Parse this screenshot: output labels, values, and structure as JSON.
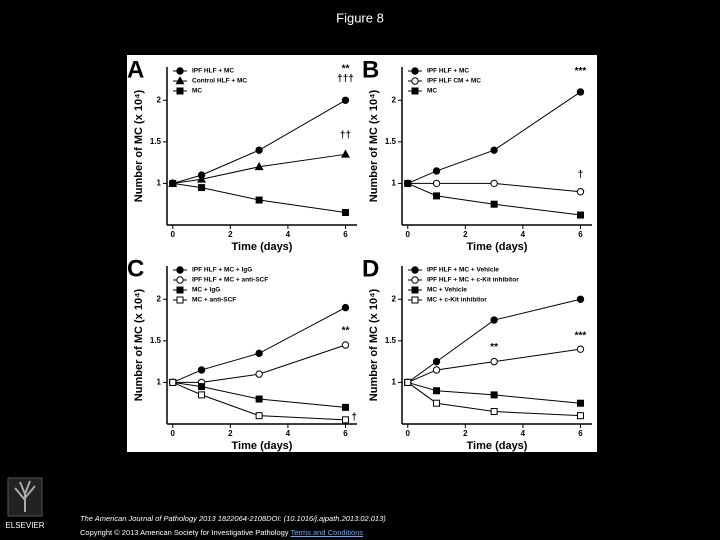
{
  "title": "Figure 8",
  "chart_data": [
    {
      "type": "line",
      "panel": "A",
      "xlabel": "Time (days)",
      "ylabel": "Number of MC (x 10⁴)",
      "x": [
        0,
        1,
        3,
        6
      ],
      "xlim": [
        -0.2,
        6.4
      ],
      "ylim": [
        0.5,
        2.4
      ],
      "xticks": [
        0,
        2,
        4,
        6
      ],
      "yticks": [
        1.0,
        1.5,
        2.0
      ],
      "series": [
        {
          "name": "IPF HLF + MC",
          "color": "#000000",
          "marker": "filled-circle",
          "values": [
            1.0,
            1.1,
            1.4,
            2.0
          ]
        },
        {
          "name": "Control HLF + MC",
          "color": "#000000",
          "marker": "filled-triangle",
          "values": [
            1.0,
            1.05,
            1.2,
            1.35
          ]
        },
        {
          "name": "MC",
          "color": "#000000",
          "marker": "filled-square",
          "values": [
            1.0,
            0.95,
            0.8,
            0.65
          ]
        }
      ],
      "annotations": [
        {
          "text": "**",
          "x": 6,
          "y": 2.38
        },
        {
          "text": "†††",
          "x": 6,
          "y": 2.26
        },
        {
          "text": "††",
          "x": 6,
          "y": 1.58
        }
      ]
    },
    {
      "type": "line",
      "panel": "B",
      "xlabel": "Time (days)",
      "ylabel": "Number of MC (x 10⁴)",
      "x": [
        0,
        1,
        3,
        6
      ],
      "xlim": [
        -0.2,
        6.4
      ],
      "ylim": [
        0.5,
        2.4
      ],
      "xticks": [
        0,
        2,
        4,
        6
      ],
      "yticks": [
        1.0,
        1.5,
        2.0
      ],
      "series": [
        {
          "name": "IPF HLF + MC",
          "color": "#000000",
          "marker": "filled-circle",
          "values": [
            1.0,
            1.15,
            1.4,
            2.1
          ]
        },
        {
          "name": "IPF HLF CM + MC",
          "color": "#000000",
          "marker": "open-circle",
          "values": [
            1.0,
            1.0,
            1.0,
            0.9
          ]
        },
        {
          "name": "MC",
          "color": "#000000",
          "marker": "filled-square",
          "values": [
            1.0,
            0.85,
            0.75,
            0.62
          ]
        }
      ],
      "annotations": [
        {
          "text": "***",
          "x": 6,
          "y": 2.35
        },
        {
          "text": "†",
          "x": 6,
          "y": 1.1
        }
      ]
    },
    {
      "type": "line",
      "panel": "C",
      "xlabel": "Time (days)",
      "ylabel": "Number of MC (x 10⁴)",
      "x": [
        0,
        1,
        3,
        6
      ],
      "xlim": [
        -0.2,
        6.4
      ],
      "ylim": [
        0.5,
        2.4
      ],
      "xticks": [
        0,
        2,
        4,
        6
      ],
      "yticks": [
        1.0,
        1.5,
        2.0
      ],
      "series": [
        {
          "name": "IPF HLF + MC + IgG",
          "color": "#000000",
          "marker": "filled-circle",
          "values": [
            1.0,
            1.15,
            1.35,
            1.9
          ]
        },
        {
          "name": "IPF HLF + MC + anti-SCF",
          "color": "#000000",
          "marker": "open-circle",
          "values": [
            1.0,
            1.0,
            1.1,
            1.45
          ]
        },
        {
          "name": "MC + IgG",
          "color": "#000000",
          "marker": "filled-square",
          "values": [
            1.0,
            0.95,
            0.8,
            0.7
          ]
        },
        {
          "name": "MC + anti-SCF",
          "color": "#000000",
          "marker": "open-square",
          "values": [
            1.0,
            0.85,
            0.6,
            0.55
          ]
        }
      ],
      "annotations": [
        {
          "text": "**",
          "x": 6,
          "y": 1.62
        },
        {
          "text": "†",
          "x": 6.3,
          "y": 0.58
        }
      ]
    },
    {
      "type": "line",
      "panel": "D",
      "xlabel": "Time (days)",
      "ylabel": "Number of MC (x 10⁴)",
      "x": [
        0,
        1,
        3,
        6
      ],
      "xlim": [
        -0.2,
        6.4
      ],
      "ylim": [
        0.5,
        2.4
      ],
      "xticks": [
        0,
        2,
        4,
        6
      ],
      "yticks": [
        1.0,
        1.5,
        2.0
      ],
      "series": [
        {
          "name": "IPF HLF + MC + Vehicle",
          "color": "#000000",
          "marker": "filled-circle",
          "values": [
            1.0,
            1.25,
            1.75,
            2.0
          ]
        },
        {
          "name": "IPF HLF + MC + c-Kit inhibitor",
          "color": "#000000",
          "marker": "open-circle",
          "values": [
            1.0,
            1.15,
            1.25,
            1.4
          ]
        },
        {
          "name": "MC + Vehicle",
          "color": "#000000",
          "marker": "filled-square",
          "values": [
            1.0,
            0.9,
            0.85,
            0.75
          ]
        },
        {
          "name": "MC + c-Kit inhibitor",
          "color": "#000000",
          "marker": "open-square",
          "values": [
            1.0,
            0.75,
            0.65,
            0.6
          ]
        }
      ],
      "annotations": [
        {
          "text": "**",
          "x": 3,
          "y": 1.42
        },
        {
          "text": "***",
          "x": 6,
          "y": 1.56
        }
      ]
    }
  ],
  "footer": {
    "citation": "The American Journal of Pathology 2013 1822064-2108DOI: (10.1016/j.ajpath.2013.02.013)",
    "copyright": "Copyright © 2013 American Society for Investigative Pathology",
    "link": "Terms and Conditions"
  },
  "logo": "ELSEVIER"
}
